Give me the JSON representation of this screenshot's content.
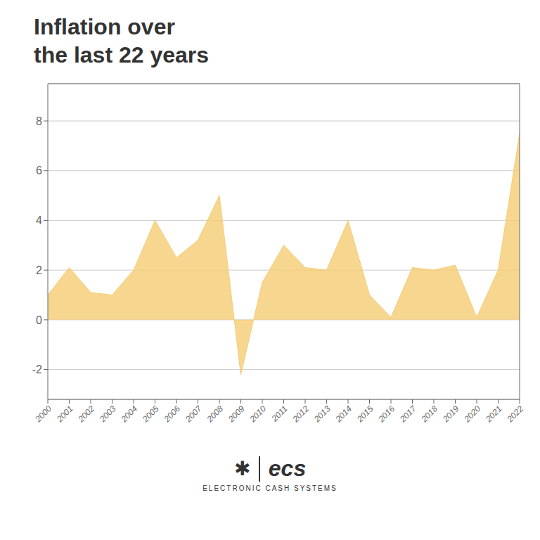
{
  "chart_data": {
    "type": "area",
    "title": "Inflation over",
    "subtitle": "the last 22 years",
    "categories": [
      "2000",
      "2001",
      "2002",
      "2003",
      "2004",
      "2005",
      "2006",
      "2007",
      "2008",
      "2009",
      "2010",
      "2011",
      "2012",
      "2013",
      "2014",
      "2015",
      "2016",
      "2017",
      "2018",
      "2019",
      "2020",
      "2021",
      "2022"
    ],
    "values": [
      1.0,
      2.1,
      1.1,
      1.0,
      2.0,
      4.0,
      2.5,
      3.2,
      5.0,
      -2.2,
      1.5,
      3.0,
      2.1,
      2.0,
      4.0,
      1.0,
      0.1,
      2.1,
      2.0,
      2.2,
      0.1,
      2.0,
      7.5
    ],
    "color": "#F5CC73",
    "ylim": [
      -3.2,
      9.5
    ],
    "yticks": [
      -2,
      0,
      2,
      4,
      6,
      8
    ],
    "grid": true,
    "annotations": [
      "✱",
      "ecs",
      "ELECTRONIC CASH SYSTEMS"
    ]
  }
}
